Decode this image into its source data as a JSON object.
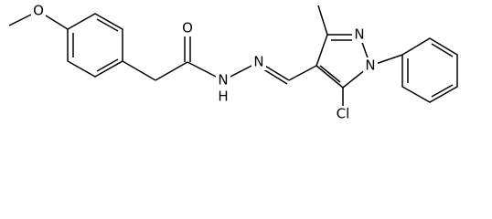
{
  "atoms": [
    "O",
    "O",
    "N",
    "H",
    "N",
    "N",
    "N",
    "Cl"
  ]
}
